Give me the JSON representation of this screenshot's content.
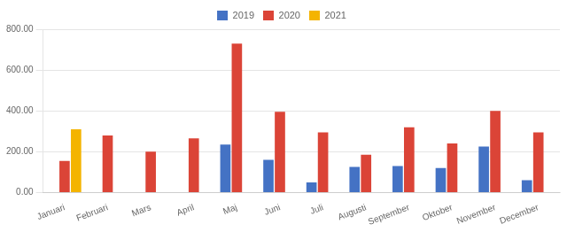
{
  "chart_data": {
    "type": "bar",
    "categories": [
      "Januari",
      "Februari",
      "Mars",
      "April",
      "Maj",
      "Juni",
      "Juli",
      "Augusti",
      "September",
      "Oktober",
      "November",
      "December"
    ],
    "series": [
      {
        "name": "2019",
        "color": "#4472C4",
        "values": [
          0,
          0,
          0,
          0,
          235,
          160,
          50,
          125,
          130,
          120,
          225,
          60
        ]
      },
      {
        "name": "2020",
        "color": "#DB4437",
        "values": [
          155,
          280,
          200,
          265,
          730,
          395,
          295,
          185,
          320,
          240,
          400,
          295
        ]
      },
      {
        "name": "2021",
        "color": "#F4B400",
        "values": [
          310,
          0,
          0,
          0,
          0,
          0,
          0,
          0,
          0,
          0,
          0,
          0
        ]
      }
    ],
    "ylim": [
      0,
      800
    ],
    "yticks": [
      {
        "value": 0,
        "label": "0.00"
      },
      {
        "value": 200,
        "label": "200.00"
      },
      {
        "value": 400,
        "label": "400.00"
      },
      {
        "value": 600,
        "label": "600.00"
      },
      {
        "value": 800,
        "label": "800.00"
      }
    ],
    "grid": true,
    "legend": "top"
  }
}
